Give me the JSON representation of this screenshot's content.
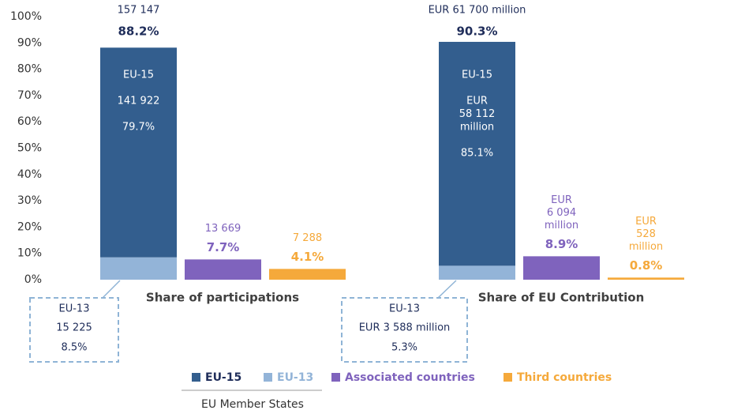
{
  "chart_data": {
    "type": "bar",
    "categories": [
      "Share of participations",
      "Share of EU Contribution"
    ],
    "total_amounts": [
      "157 147",
      "EUR 61 700 million"
    ],
    "total_labels": [
      "88.2%",
      "90.3%"
    ],
    "series": [
      {
        "name": "EU-15",
        "color": "#335e8e",
        "values": [
          79.7,
          85.1
        ],
        "value_labels": [
          "79.7%",
          "85.1%"
        ],
        "amount_labels": [
          [
            "141 922"
          ],
          [
            "EUR",
            "58 112",
            "million"
          ]
        ]
      },
      {
        "name": "EU-13",
        "color": "#93b4d8",
        "values": [
          8.5,
          5.3
        ],
        "value_labels": [
          "8.5%",
          "5.3%"
        ],
        "amount_labels": [
          [
            "15 225"
          ],
          [
            "EUR 3 588 million"
          ]
        ]
      },
      {
        "name": "Associated countries",
        "color": "#7f63bd",
        "values": [
          7.7,
          8.9
        ],
        "value_labels": [
          "7.7%",
          "8.9%"
        ],
        "amount_labels": [
          [
            "13 669"
          ],
          [
            "EUR",
            "6 094",
            "million"
          ]
        ]
      },
      {
        "name": "Third countries",
        "color": "#f5a93b",
        "values": [
          4.1,
          0.8
        ],
        "value_labels": [
          "4.1%",
          "0.8%"
        ],
        "amount_labels": [
          [
            "7 288"
          ],
          [
            "EUR",
            "528",
            "million"
          ]
        ]
      }
    ],
    "legend_group_label": "EU Member States",
    "ylim": [
      0,
      100
    ],
    "yticks": [
      {
        "value": 0,
        "label": "0%"
      },
      {
        "value": 10,
        "label": "10%"
      },
      {
        "value": 20,
        "label": "20%"
      },
      {
        "value": 30,
        "label": "30%"
      },
      {
        "value": 40,
        "label": "40%"
      },
      {
        "value": 50,
        "label": "50%"
      },
      {
        "value": 60,
        "label": "60%"
      },
      {
        "value": 70,
        "label": "70%"
      },
      {
        "value": 80,
        "label": "80%"
      },
      {
        "value": 90,
        "label": "90%"
      },
      {
        "value": 100,
        "label": "100%"
      }
    ]
  }
}
